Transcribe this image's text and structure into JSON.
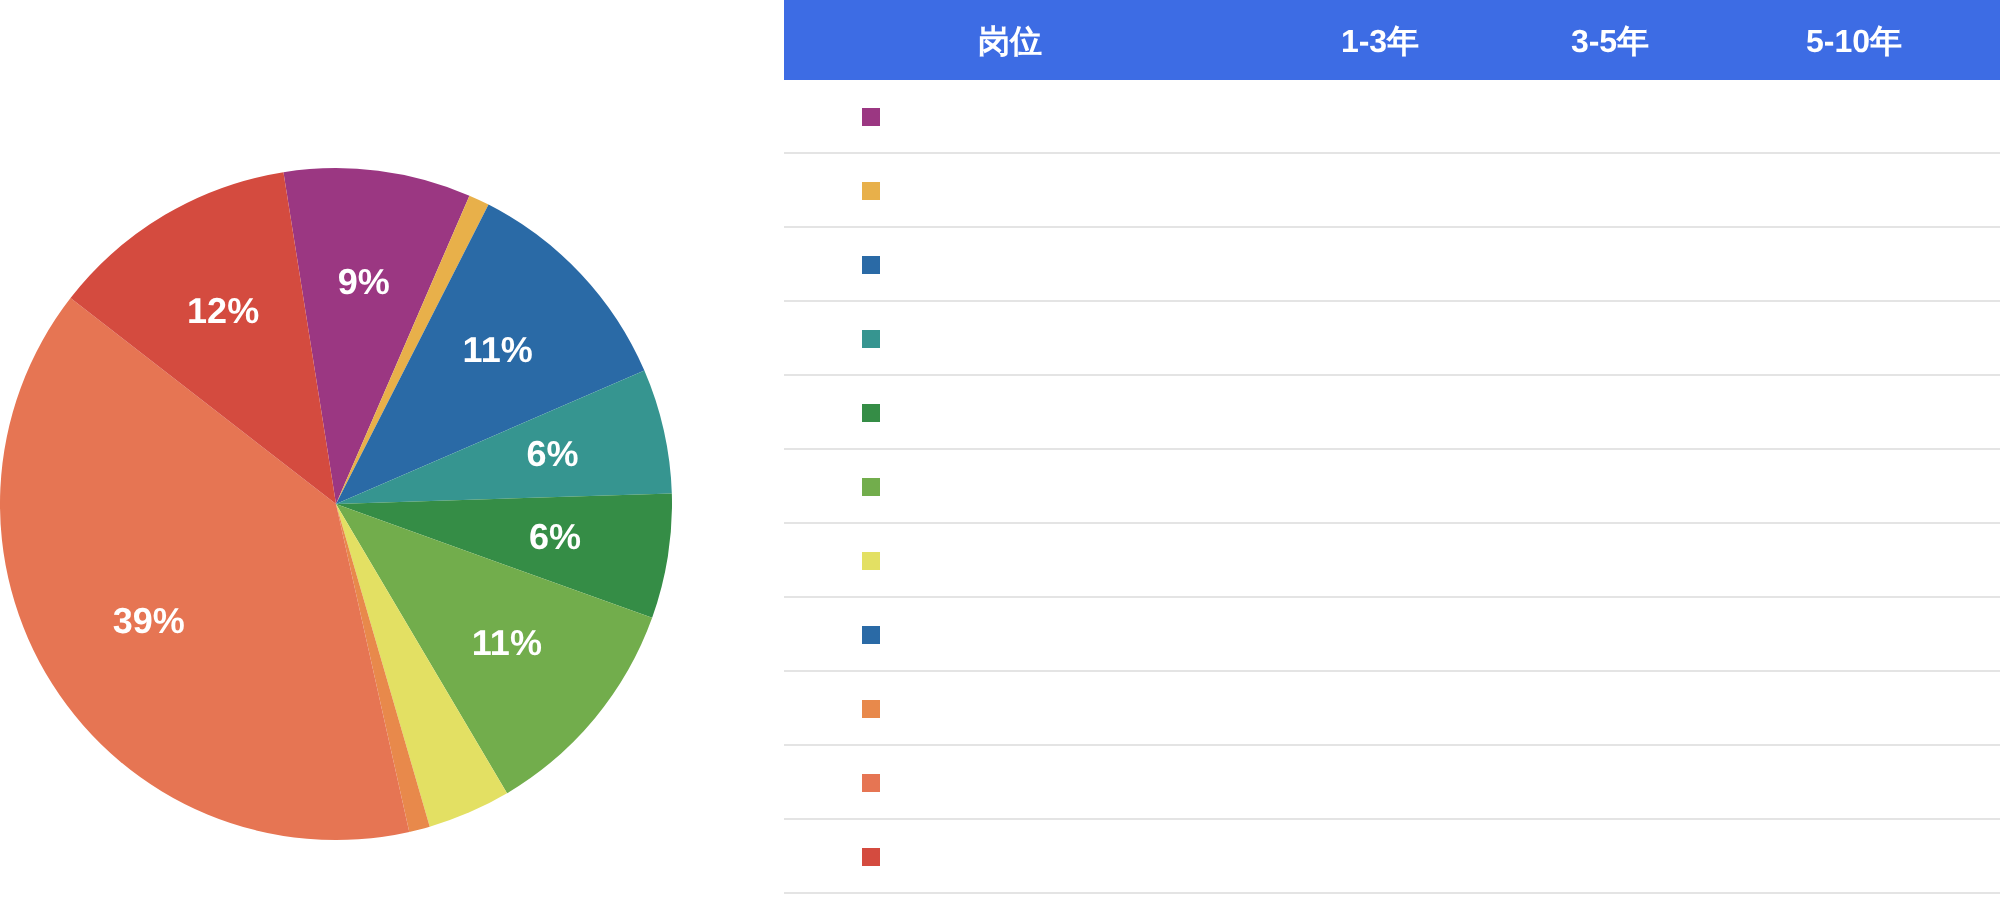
{
  "chart_data": {
    "type": "pie",
    "categories": [
      null,
      null,
      null,
      null,
      null,
      null,
      null,
      null,
      null,
      null,
      null
    ],
    "values": [
      9,
      1,
      11,
      6,
      6,
      11,
      4,
      0,
      1,
      39,
      12
    ],
    "colors": [
      "#9b3782",
      "#e8b04a",
      "#2a6aa6",
      "#369590",
      "#358d46",
      "#72ad4c",
      "#e3e063",
      "#2a6aa6",
      "#e8894b",
      "#e67553",
      "#d44b3f"
    ],
    "value_labels": [
      "9%",
      null,
      "11%",
      "6%",
      "6%",
      "11%",
      null,
      null,
      null,
      "39%",
      "12%"
    ],
    "annotations": [
      "岗位",
      "1-3年",
      "3-5年",
      "5-10年"
    ]
  }
}
